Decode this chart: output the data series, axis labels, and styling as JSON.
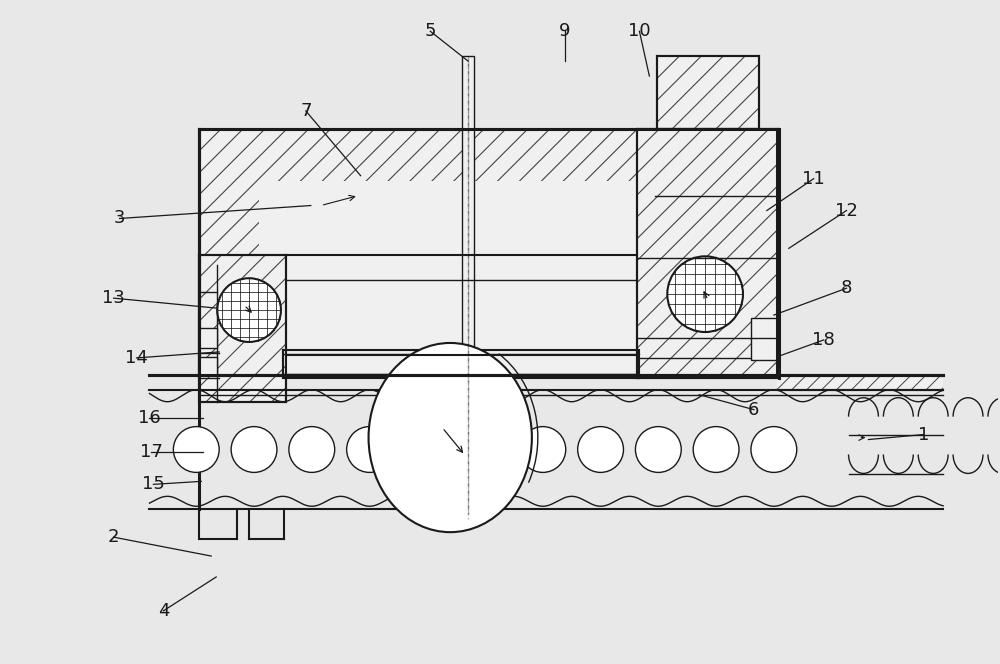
{
  "bg_color": "#e8e8e8",
  "line_color": "#1a1a1a",
  "figsize": [
    10.0,
    6.64
  ],
  "dpi": 100,
  "labels": [
    [
      "1",
      925,
      435,
      870,
      440
    ],
    [
      "2",
      112,
      538,
      210,
      557
    ],
    [
      "3",
      118,
      218,
      310,
      205
    ],
    [
      "4",
      162,
      612,
      215,
      578
    ],
    [
      "5",
      430,
      30,
      468,
      60
    ],
    [
      "6",
      755,
      410,
      700,
      395
    ],
    [
      "7",
      305,
      110,
      360,
      175
    ],
    [
      "8",
      848,
      288,
      775,
      315
    ],
    [
      "9",
      565,
      30,
      565,
      60
    ],
    [
      "10",
      640,
      30,
      650,
      75
    ],
    [
      "11",
      815,
      178,
      768,
      210
    ],
    [
      "12",
      848,
      210,
      790,
      248
    ],
    [
      "13",
      112,
      298,
      215,
      308
    ],
    [
      "14",
      135,
      358,
      218,
      352
    ],
    [
      "15",
      152,
      485,
      200,
      482
    ],
    [
      "16",
      148,
      418,
      202,
      418
    ],
    [
      "17",
      150,
      453,
      202,
      453
    ],
    [
      "18",
      825,
      340,
      778,
      357
    ]
  ]
}
